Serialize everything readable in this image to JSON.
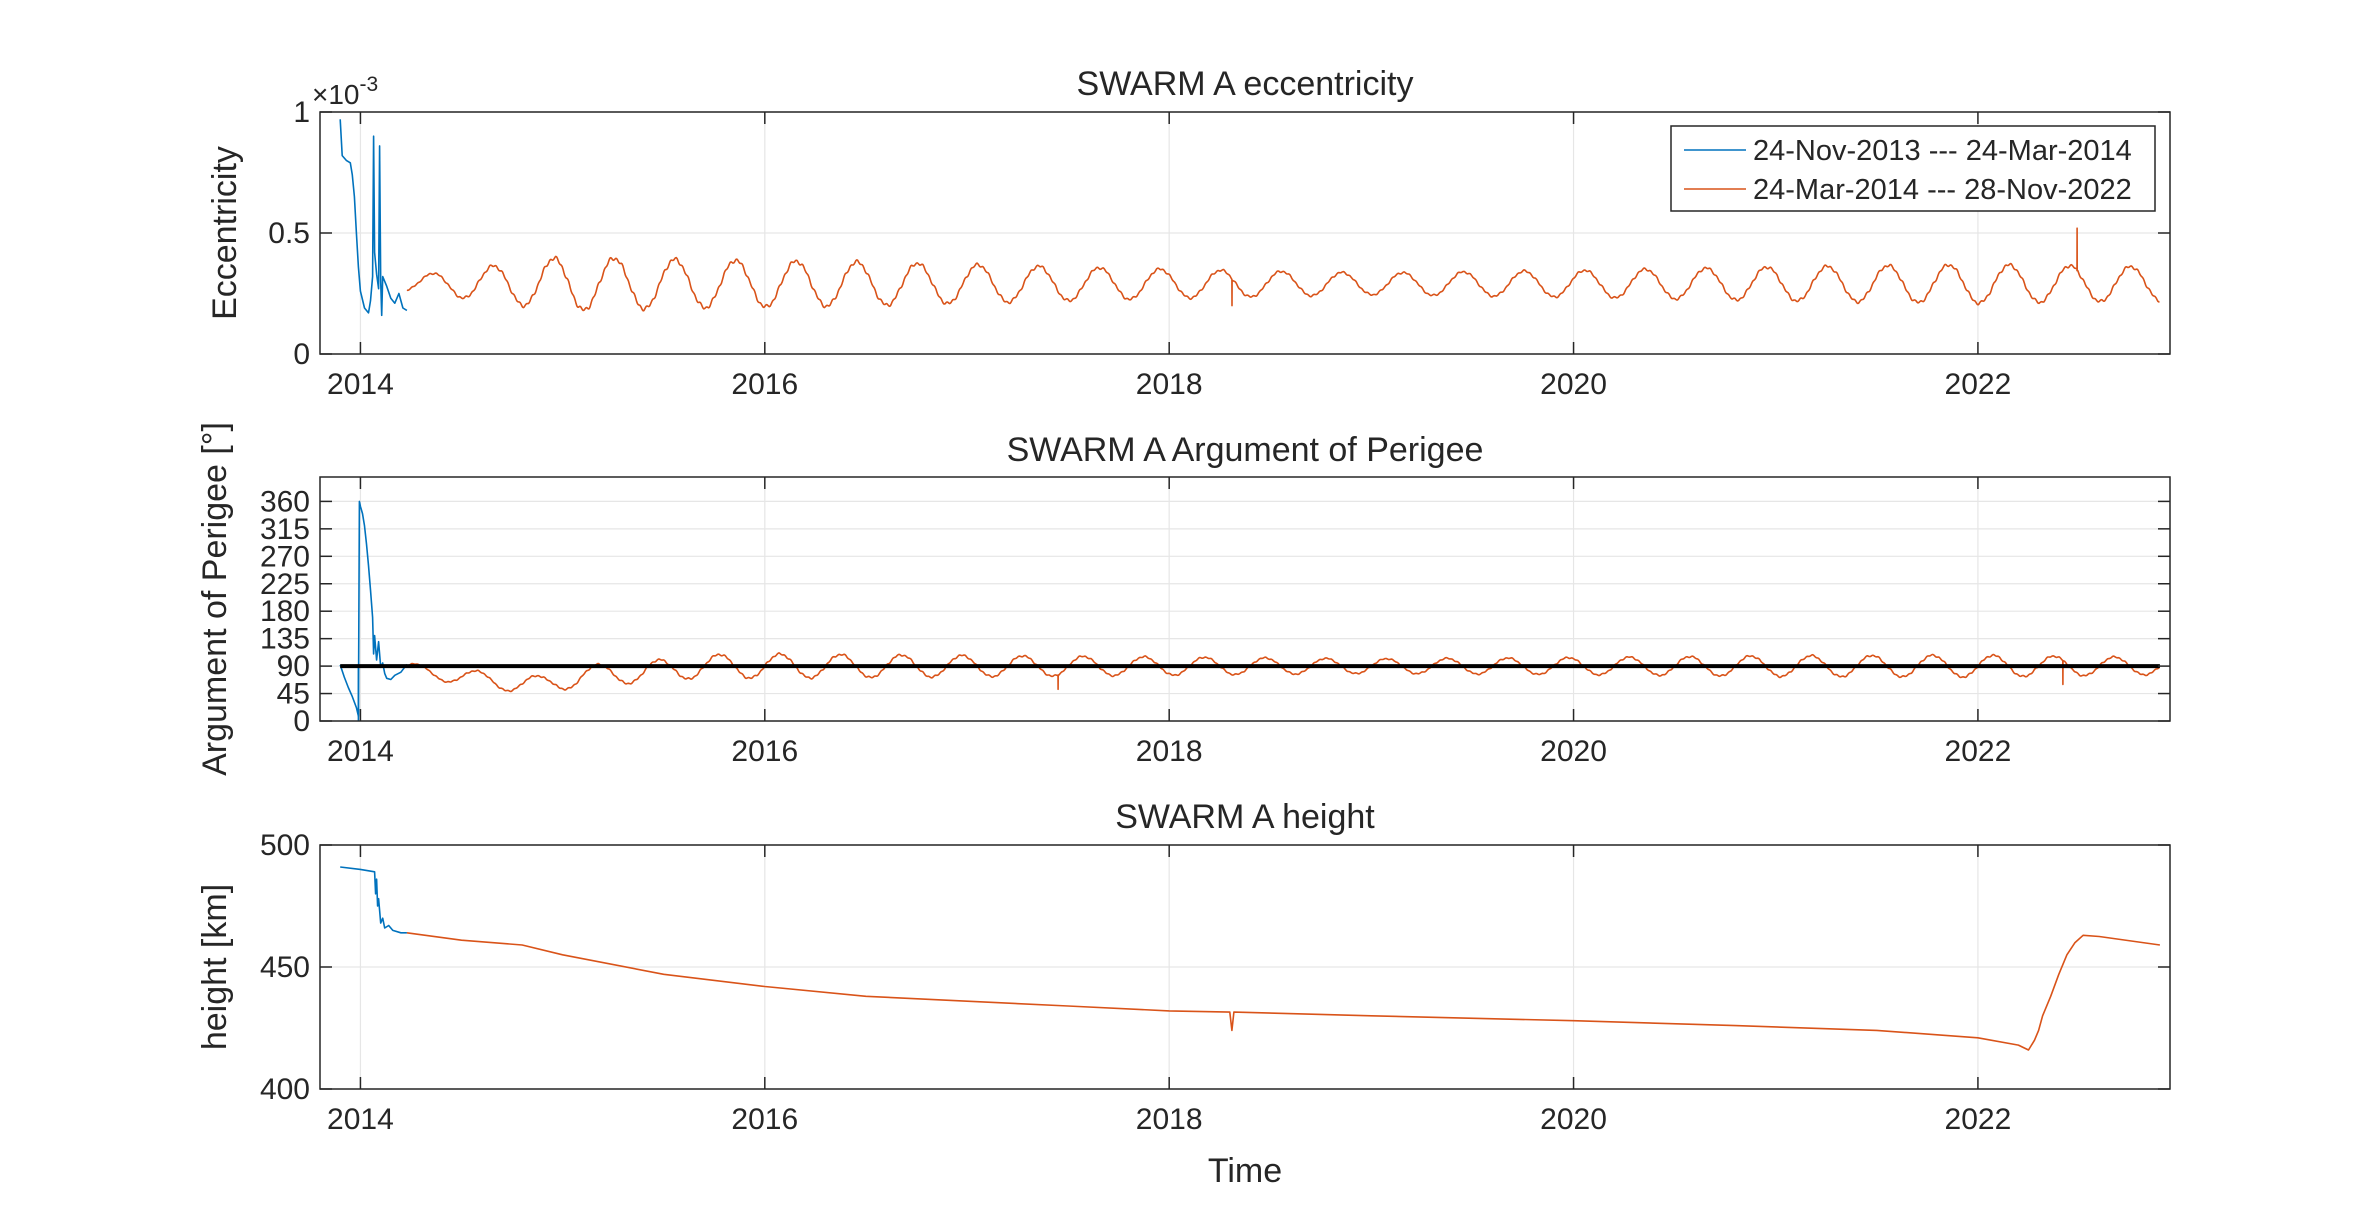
{
  "colors": {
    "series1": "#0072bd",
    "series2": "#d95319",
    "reference": "#000000",
    "grid": "#e6e6e6",
    "axis": "#262626"
  },
  "chart_data": [
    {
      "type": "line",
      "title": "SWARM A eccentricity",
      "xlabel": "",
      "ylabel": "Eccentricity",
      "y_exponent_label": "×10",
      "y_exponent_power": "-3",
      "xlim": [
        2013.8,
        2022.95
      ],
      "ylim": [
        0,
        1
      ],
      "xticks": [
        2014,
        2016,
        2018,
        2020,
        2022
      ],
      "xtick_labels": [
        "2014",
        "2016",
        "2018",
        "2020",
        "2022"
      ],
      "yticks": [
        0,
        0.5,
        1
      ],
      "ytick_labels": [
        "0",
        "0.5",
        "1"
      ],
      "grid": true,
      "legend_position": "top-right",
      "series": [
        {
          "name": "24-Nov-2013 --- 24-Mar-2014",
          "color": "#0072bd",
          "points": [
            [
              2013.9,
              0.97
            ],
            [
              2013.91,
              0.82
            ],
            [
              2013.93,
              0.8
            ],
            [
              2013.95,
              0.79
            ],
            [
              2013.96,
              0.74
            ],
            [
              2013.97,
              0.65
            ],
            [
              2013.98,
              0.5
            ],
            [
              2013.99,
              0.36
            ],
            [
              2014.0,
              0.26
            ],
            [
              2014.02,
              0.19
            ],
            [
              2014.04,
              0.17
            ],
            [
              2014.05,
              0.22
            ],
            [
              2014.06,
              0.32
            ],
            [
              2014.065,
              0.9
            ],
            [
              2014.07,
              0.42
            ],
            [
              2014.08,
              0.33
            ],
            [
              2014.09,
              0.27
            ],
            [
              2014.095,
              0.86
            ],
            [
              2014.1,
              0.3
            ],
            [
              2014.105,
              0.16
            ],
            [
              2014.11,
              0.32
            ],
            [
              2014.13,
              0.28
            ],
            [
              2014.15,
              0.23
            ],
            [
              2014.17,
              0.21
            ],
            [
              2014.19,
              0.25
            ],
            [
              2014.21,
              0.19
            ],
            [
              2014.23,
              0.18
            ]
          ]
        },
        {
          "name": "24-Mar-2014 --- 28-Nov-2022",
          "color": "#d95319",
          "generator": {
            "x_start": 2014.23,
            "x_end": 2022.9,
            "mean": 0.29,
            "amplitude": 0.07,
            "period_years": 0.3,
            "phase_year": 2014.58,
            "envelope": [
              [
                2014.23,
                0.03
              ],
              [
                2015.0,
                0.11
              ],
              [
                2015.6,
                0.1
              ],
              [
                2016.5,
                0.09
              ],
              [
                2018.0,
                0.06
              ],
              [
                2019.0,
                0.045
              ],
              [
                2020.0,
                0.055
              ],
              [
                2021.0,
                0.07
              ],
              [
                2022.0,
                0.08
              ],
              [
                2022.9,
                0.07
              ]
            ],
            "spikes": [
              [
                2018.31,
                0.2
              ],
              [
                2022.49,
                0.52
              ]
            ]
          }
        }
      ]
    },
    {
      "type": "line",
      "title": "SWARM A Argument of Perigee",
      "xlabel": "",
      "ylabel": "Argument of Perigee [°]",
      "xlim": [
        2013.8,
        2022.95
      ],
      "ylim": [
        0,
        400
      ],
      "xticks": [
        2014,
        2016,
        2018,
        2020,
        2022
      ],
      "xtick_labels": [
        "2014",
        "2016",
        "2018",
        "2020",
        "2022"
      ],
      "yticks": [
        0,
        45,
        90,
        135,
        180,
        225,
        270,
        315,
        360
      ],
      "ytick_labels": [
        "0",
        "45",
        "90",
        "135",
        "180",
        "225",
        "270",
        "315",
        "360"
      ],
      "grid": true,
      "reference_line": {
        "y": 90,
        "x": [
          2013.9,
          2022.9
        ],
        "color": "#000000"
      },
      "series": [
        {
          "name": "24-Nov-2013 --- 24-Mar-2014",
          "color": "#0072bd",
          "points": [
            [
              2013.9,
              92
            ],
            [
              2013.92,
              72
            ],
            [
              2013.94,
              55
            ],
            [
              2013.96,
              40
            ],
            [
              2013.98,
              22
            ],
            [
              2013.99,
              8
            ],
            [
              2013.995,
              360
            ],
            [
              2014.0,
              352
            ],
            [
              2014.01,
              340
            ],
            [
              2014.02,
              320
            ],
            [
              2014.03,
              290
            ],
            [
              2014.04,
              255
            ],
            [
              2014.05,
              215
            ],
            [
              2014.06,
              170
            ],
            [
              2014.065,
              110
            ],
            [
              2014.07,
              140
            ],
            [
              2014.08,
              100
            ],
            [
              2014.09,
              130
            ],
            [
              2014.1,
              88
            ],
            [
              2014.11,
              95
            ],
            [
              2014.12,
              78
            ],
            [
              2014.13,
              70
            ],
            [
              2014.15,
              68
            ],
            [
              2014.17,
              75
            ],
            [
              2014.2,
              80
            ],
            [
              2014.23,
              93
            ]
          ]
        },
        {
          "name": "24-Mar-2014 --- 28-Nov-2022",
          "color": "#d95319",
          "generator": {
            "x_start": 2014.23,
            "x_end": 2022.9,
            "mean": 90,
            "amplitude": 14,
            "period_years": 0.3,
            "phase_year": 2014.5,
            "baseline": [
              [
                2014.23,
                85
              ],
              [
                2014.6,
                68
              ],
              [
                2014.9,
                58
              ],
              [
                2015.1,
                75
              ],
              [
                2015.4,
                80
              ],
              [
                2015.7,
                90
              ],
              [
                2022.9,
                90
              ]
            ],
            "envelope": [
              [
                2014.23,
                10
              ],
              [
                2014.8,
                15
              ],
              [
                2015.5,
                18
              ],
              [
                2016.0,
                20
              ],
              [
                2018.0,
                15
              ],
              [
                2019.0,
                12
              ],
              [
                2020.0,
                14
              ],
              [
                2021.0,
                17
              ],
              [
                2022.0,
                18
              ],
              [
                2022.9,
                14
              ]
            ],
            "spikes": [
              [
                2017.45,
                52
              ],
              [
                2022.42,
                60
              ]
            ]
          }
        },
        {
          "name": "",
          "color": "#0072bd",
          "segments": [
            [
              [
                2013.99,
                0
              ],
              [
                2013.99,
                92
              ]
            ]
          ]
        }
      ]
    },
    {
      "type": "line",
      "title": "SWARM A height",
      "xlabel": "Time",
      "ylabel": "height [km]",
      "xlim": [
        2013.8,
        2022.95
      ],
      "ylim": [
        400,
        500
      ],
      "xticks": [
        2014,
        2016,
        2018,
        2020,
        2022
      ],
      "xtick_labels": [
        "2014",
        "2016",
        "2018",
        "2020",
        "2022"
      ],
      "yticks": [
        400,
        450,
        500
      ],
      "ytick_labels": [
        "400",
        "450",
        "500"
      ],
      "grid": true,
      "series": [
        {
          "name": "24-Nov-2013 --- 24-Mar-2014",
          "color": "#0072bd",
          "points": [
            [
              2013.9,
              491
            ],
            [
              2014.0,
              490
            ],
            [
              2014.07,
              489
            ],
            [
              2014.075,
              480
            ],
            [
              2014.08,
              486
            ],
            [
              2014.085,
              475
            ],
            [
              2014.09,
              478
            ],
            [
              2014.1,
              468
            ],
            [
              2014.11,
              470
            ],
            [
              2014.12,
              466
            ],
            [
              2014.14,
              467
            ],
            [
              2014.16,
              465
            ],
            [
              2014.2,
              464
            ],
            [
              2014.23,
              464
            ]
          ]
        },
        {
          "name": "24-Mar-2014 --- 28-Nov-2022",
          "color": "#d95319",
          "points": [
            [
              2014.23,
              464
            ],
            [
              2014.5,
              461
            ],
            [
              2014.8,
              459
            ],
            [
              2015.0,
              455
            ],
            [
              2015.5,
              447
            ],
            [
              2016.0,
              442
            ],
            [
              2016.5,
              438
            ],
            [
              2017.0,
              436
            ],
            [
              2017.5,
              434
            ],
            [
              2018.0,
              432
            ],
            [
              2018.3,
              431.5
            ],
            [
              2018.31,
              424
            ],
            [
              2018.32,
              431.5
            ],
            [
              2019.0,
              430
            ],
            [
              2020.0,
              428
            ],
            [
              2020.8,
              426
            ],
            [
              2021.5,
              424
            ],
            [
              2022.0,
              421
            ],
            [
              2022.2,
              418
            ],
            [
              2022.25,
              416
            ],
            [
              2022.28,
              420
            ],
            [
              2022.3,
              424
            ],
            [
              2022.32,
              430
            ],
            [
              2022.36,
              438
            ],
            [
              2022.4,
              447
            ],
            [
              2022.44,
              455
            ],
            [
              2022.48,
              460
            ],
            [
              2022.52,
              463
            ],
            [
              2022.6,
              462.5
            ],
            [
              2022.9,
              459
            ]
          ]
        }
      ]
    }
  ]
}
